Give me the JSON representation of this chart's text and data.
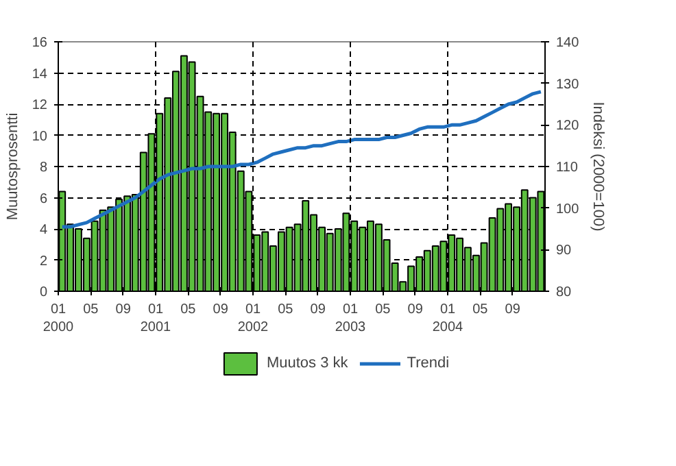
{
  "chart_data": {
    "type": "bar",
    "ylabel": "Muutosprosentti",
    "y2label": "Indeksi (2000=100)",
    "x": [
      "2000-01-16",
      "2000-02-15",
      "2000-03-16",
      "2000-04-16",
      "2000-05-16",
      "2000-06-16",
      "2000-07-16",
      "2000-08-16",
      "2000-09-16",
      "2000-10-16",
      "2000-11-16",
      "2000-12-16",
      "2001-01-16",
      "2001-02-15",
      "2001-03-16",
      "2001-04-16",
      "2001-05-16",
      "2001-06-16",
      "2001-07-16",
      "2001-08-16",
      "2001-09-16",
      "2001-10-16",
      "2001-11-16",
      "2001-12-16",
      "2002-01-16",
      "2002-02-15",
      "2002-03-16",
      "2002-04-16",
      "2002-05-16",
      "2002-06-16",
      "2002-07-16",
      "2002-08-16",
      "2002-09-16",
      "2002-10-16",
      "2002-11-16",
      "2002-12-16",
      "2003-01-16",
      "2003-02-15",
      "2003-03-16",
      "2003-04-16",
      "2003-05-16",
      "2003-06-16",
      "2003-07-16",
      "2003-08-16",
      "2003-09-16",
      "2003-10-16",
      "2003-11-16",
      "2003-12-16",
      "2004-01-16",
      "2004-02-15",
      "2004-03-16",
      "2004-04-16",
      "2004-05-16",
      "2004-06-16",
      "2004-07-16",
      "2004-08-16",
      "2004-09-16",
      "2004-10-16",
      "2004-11-16",
      "2004-12-16"
    ],
    "series": [
      {
        "name": "Muutos 3 kk",
        "color": "#5cbf3f",
        "values": [
          6.4,
          4.3,
          4.0,
          3.4,
          4.5,
          5.2,
          5.4,
          5.9,
          6.1,
          6.2,
          8.9,
          10.1,
          11.4,
          12.4,
          14.1,
          15.1,
          14.7,
          12.5,
          11.5,
          11.4,
          11.4,
          10.2,
          7.7,
          6.4,
          3.6,
          3.8,
          2.9,
          3.8,
          4.1,
          4.3,
          5.8,
          4.9,
          4.1,
          3.7,
          4.0,
          5.0,
          4.5,
          4.1,
          4.5,
          4.3,
          3.3,
          1.8,
          0.6,
          1.6,
          2.2,
          2.6,
          2.9,
          3.2,
          3.6,
          3.4,
          2.8,
          2.3,
          3.1,
          4.7,
          5.3,
          5.6,
          5.4,
          6.5,
          6.0,
          6.4
        ]
      },
      {
        "name": "Trendi",
        "type": "line",
        "axis": "y2",
        "color": "#1f6fbf",
        "values": [
          95.5,
          95.5,
          96,
          96.5,
          97.5,
          98.5,
          99.5,
          100.5,
          101.5,
          102.5,
          104,
          105.5,
          107,
          108,
          108.5,
          109,
          109.5,
          109.5,
          110,
          110,
          110,
          110,
          110.5,
          110.5,
          111,
          112,
          113,
          113.5,
          114,
          114.5,
          114.5,
          115,
          115,
          115.5,
          116,
          116,
          116.5,
          116.5,
          116.5,
          116.5,
          117,
          117,
          117.5,
          118,
          119,
          119.5,
          119.5,
          119.5,
          120,
          120,
          120.5,
          121,
          122,
          123,
          124,
          125,
          125.5,
          126.5,
          127.5,
          128
        ]
      }
    ],
    "xlim": [
      "2000-01",
      "2005-01"
    ],
    "xticks": [
      {
        "value": "2000-01",
        "label": "01\n2000"
      },
      {
        "value": "2000-05",
        "label": "05"
      },
      {
        "value": "2000-09",
        "label": "09"
      },
      {
        "value": "2001-01",
        "label": "01\n2001"
      },
      {
        "value": "2001-05",
        "label": "05"
      },
      {
        "value": "2001-09",
        "label": "09"
      },
      {
        "value": "2002-01",
        "label": "01\n2002"
      },
      {
        "value": "2002-05",
        "label": "05"
      },
      {
        "value": "2002-09",
        "label": "09"
      },
      {
        "value": "2003-01",
        "label": "01\n2003"
      },
      {
        "value": "2003-05",
        "label": "05"
      },
      {
        "value": "2003-09",
        "label": "09"
      },
      {
        "value": "2004-01",
        "label": "01\n2004"
      },
      {
        "value": "2004-05",
        "label": "05"
      },
      {
        "value": "2004-09",
        "label": "09"
      }
    ],
    "ylim": [
      0,
      16
    ],
    "yticks": [
      0,
      2,
      4,
      6,
      8,
      10,
      12,
      14,
      16
    ],
    "y2lim": [
      80,
      140
    ],
    "y2ticks": [
      80,
      90,
      100,
      110,
      120,
      130,
      140
    ],
    "grid": "y",
    "ref_lines": [
      {
        "axis": "x",
        "value": "2001-01",
        "line_style": "dashed"
      },
      {
        "axis": "x",
        "value": "2002-01",
        "line_style": "dashed"
      },
      {
        "axis": "x",
        "value": "2003-01",
        "line_style": "dashed"
      },
      {
        "axis": "x",
        "value": "2004-01",
        "line_style": "dashed"
      }
    ],
    "legend": "bottom"
  }
}
